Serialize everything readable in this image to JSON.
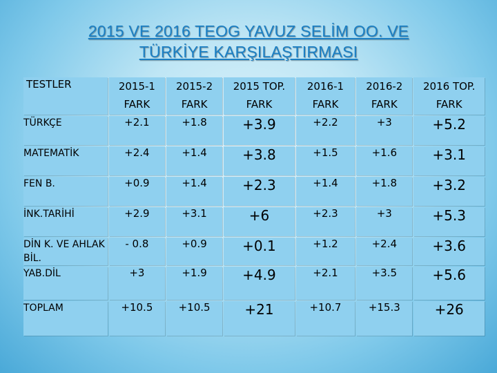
{
  "title_line1": "2015 VE 2016 TEOG YAVUZ SELİM OO. VE",
  "title_line2": "TÜRKİYE KARŞILAŞTIRMASI",
  "headers": [
    {
      "l1": "TESTLER",
      "l2": ""
    },
    {
      "l1": "2015-1",
      "l2": "FARK"
    },
    {
      "l1": "2015-2",
      "l2": "FARK"
    },
    {
      "l1": "2015 TOP.",
      "l2": "FARK"
    },
    {
      "l1": "2016-1",
      "l2": "FARK"
    },
    {
      "l1": "2016-2",
      "l2": "FARK"
    },
    {
      "l1": "2016 TOP.",
      "l2": "FARK"
    }
  ],
  "rows": [
    {
      "name": "TÜRKÇE",
      "v": [
        "+2.1",
        "+1.8",
        "+3.9",
        "+2.2",
        "+3",
        "+5.2"
      ]
    },
    {
      "name": "MATEMATİK",
      "v": [
        "+2.4",
        "+1.4",
        "+3.8",
        "+1.5",
        "+1.6",
        "+3.1"
      ]
    },
    {
      "name": "FEN B.",
      "v": [
        "+0.9",
        "+1.4",
        "+2.3",
        "+1.4",
        "+1.8",
        "+3.2"
      ]
    },
    {
      "name": "İNK.TARİHİ",
      "v": [
        "+2.9",
        "+3.1",
        "+6",
        "+2.3",
        "+3",
        "+5.3"
      ]
    },
    {
      "name": "DİN K. VE AHLAK BİL.",
      "v": [
        "- 0.8",
        "+0.9",
        "+0.1",
        "+1.2",
        "+2.4",
        "+3.6"
      ]
    },
    {
      "name": "YAB.DİL",
      "v": [
        "+3",
        "+1.9",
        "+4.9",
        "+2.1",
        "+3.5",
        "+5.6"
      ]
    },
    {
      "name": "TOPLAM",
      "v": [
        "+10.5",
        "+10.5",
        "+21",
        "+10.7",
        "+15.3",
        "+26"
      ]
    }
  ]
}
